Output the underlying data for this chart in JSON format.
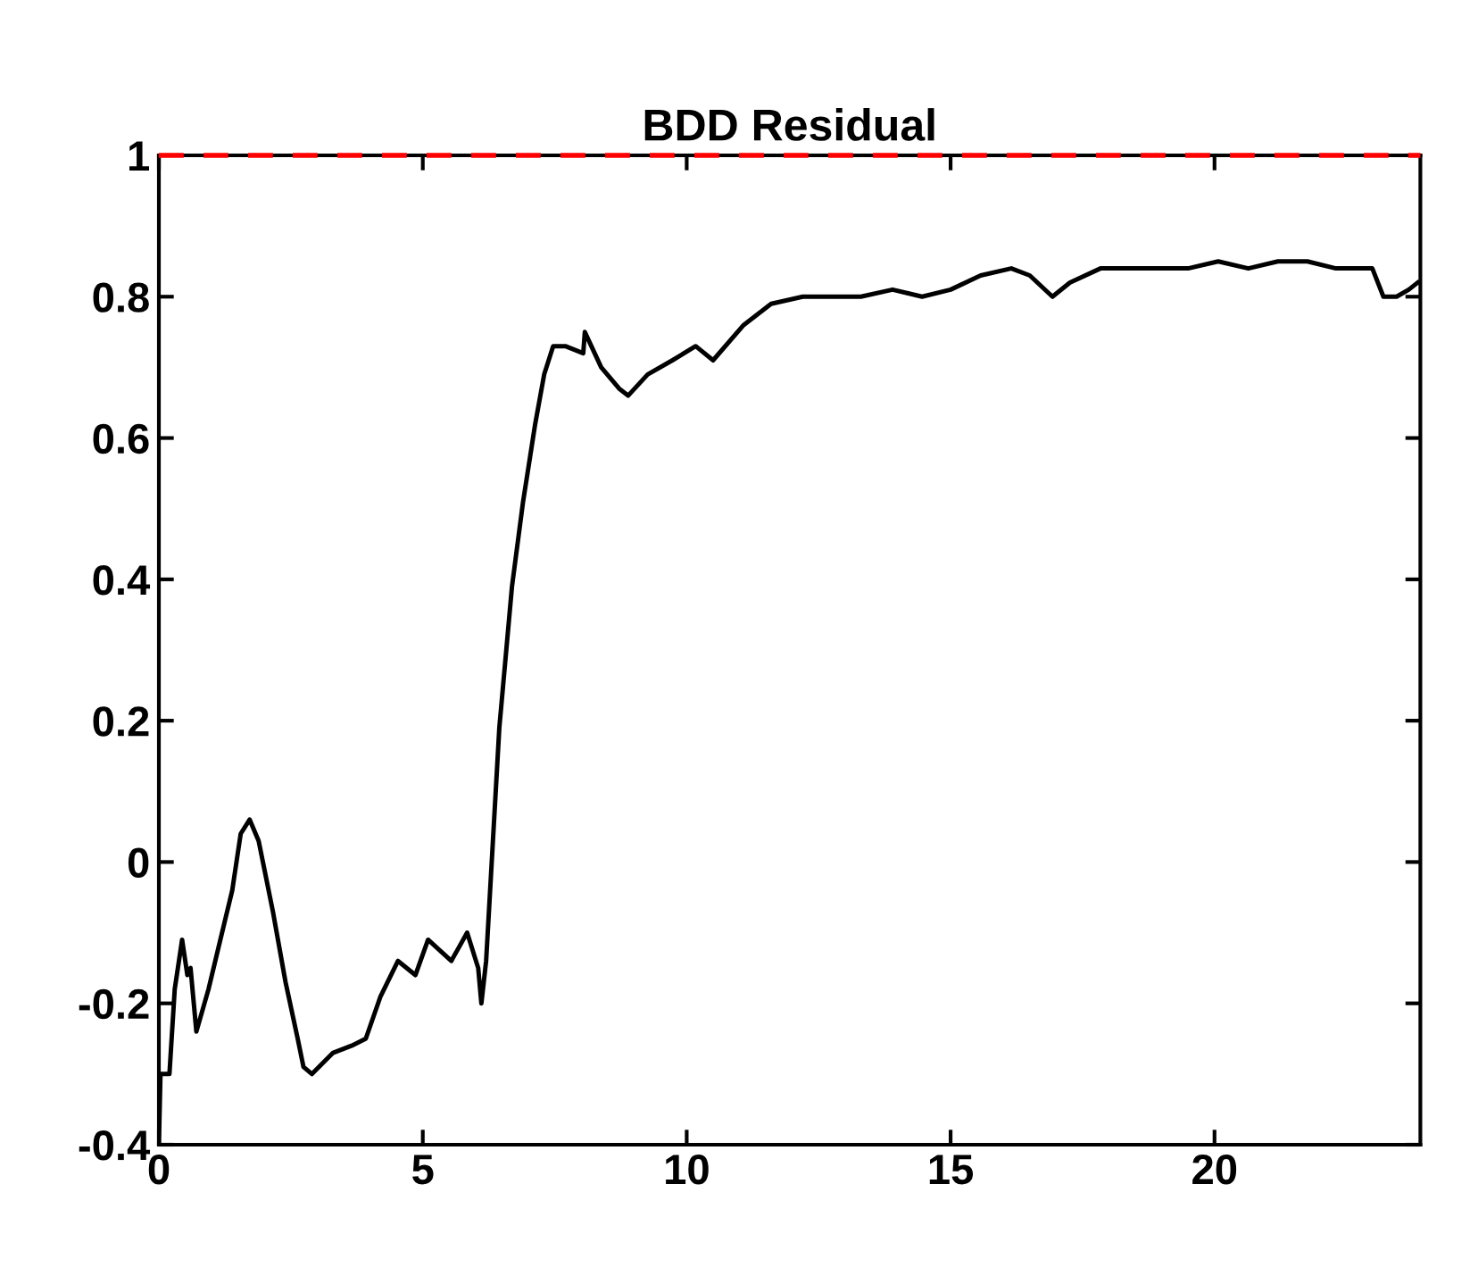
{
  "chart_data": {
    "type": "line",
    "title": "BDD Residual",
    "x": [
      0,
      0.03,
      0.2,
      0.3,
      0.44,
      0.54,
      0.6,
      0.71,
      0.94,
      1.1,
      1.39,
      1.55,
      1.72,
      1.89,
      2.16,
      2.4,
      2.63,
      2.74,
      2.9,
      3.3,
      3.65,
      3.92,
      4.2,
      4.53,
      4.86,
      5.1,
      5.54,
      5.84,
      6.05,
      6.11,
      6.2,
      6.45,
      6.69,
      6.9,
      7.13,
      7.3,
      7.47,
      7.7,
      8.04,
      8.07,
      8.38,
      8.72,
      8.89,
      9.26,
      9.73,
      10.17,
      10.5,
      11.08,
      11.6,
      12.2,
      12.77,
      13.3,
      13.9,
      14.46,
      15.0,
      15.57,
      16.15,
      16.5,
      16.93,
      17.26,
      17.84,
      18.4,
      18.95,
      19.5,
      20.07,
      20.64,
      21.2,
      21.76,
      22.3,
      22.99,
      23.2,
      23.45,
      23.68,
      23.85
    ],
    "series": [
      {
        "color": "#000000",
        "values": [
          -0.4,
          -0.3,
          -0.3,
          -0.18,
          -0.11,
          -0.16,
          -0.15,
          -0.24,
          -0.18,
          -0.13,
          -0.04,
          0.04,
          0.06,
          0.03,
          -0.07,
          -0.17,
          -0.25,
          -0.29,
          -0.3,
          -0.27,
          -0.26,
          -0.25,
          -0.19,
          -0.14,
          -0.16,
          -0.11,
          -0.14,
          -0.1,
          -0.15,
          -0.2,
          -0.14,
          0.19,
          0.39,
          0.51,
          0.62,
          0.69,
          0.73,
          0.73,
          0.72,
          0.75,
          0.7,
          0.67,
          0.66,
          0.69,
          0.71,
          0.73,
          0.71,
          0.76,
          0.79,
          0.8,
          0.8,
          0.8,
          0.81,
          0.8,
          0.81,
          0.83,
          0.84,
          0.83,
          0.8,
          0.82,
          0.84,
          0.84,
          0.84,
          0.84,
          0.85,
          0.84,
          0.85,
          0.85,
          0.84,
          0.84,
          0.8,
          0.8,
          0.81,
          0.82
        ]
      }
    ],
    "xlim": [
      0,
      23.9
    ],
    "ylim": [
      -0.4,
      1
    ],
    "xticks": [
      0,
      5,
      10,
      15,
      20
    ],
    "yticks": [
      -0.4,
      -0.2,
      0,
      0.2,
      0.4,
      0.6,
      0.8,
      1
    ],
    "ref_lines": [
      {
        "axis": "y",
        "value": 1,
        "color": "#ff0000",
        "line_style": "dashed"
      }
    ],
    "grid": false,
    "legend": false,
    "marker": "none",
    "line_style": "solid"
  }
}
